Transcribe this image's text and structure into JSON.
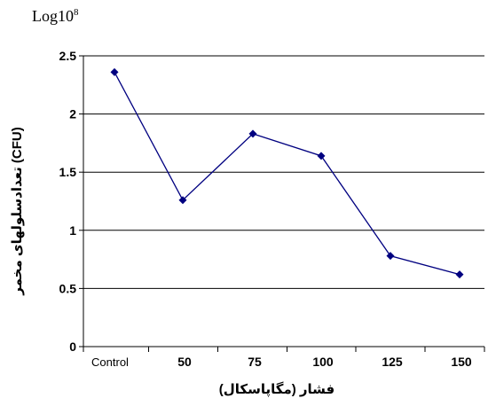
{
  "corner_label": {
    "base": "Log10",
    "exponent": "8"
  },
  "chart_data": {
    "type": "line",
    "title": "",
    "xlabel": "فشار (مگاپاسکال)",
    "ylabel": "تعدادسلولهای مخمر (CFU)",
    "categories": [
      "Control",
      "50",
      "75",
      "100",
      "125",
      "150"
    ],
    "series": [
      {
        "values": [
          2.36,
          1.26,
          1.83,
          1.64,
          0.78,
          0.62
        ],
        "color": "#000080",
        "marker": "diamond"
      }
    ],
    "ylim": [
      0,
      2.5
    ],
    "yticks": [
      "0",
      "0.5",
      "1",
      "1.5",
      "2",
      "2.5"
    ],
    "grid": true
  }
}
